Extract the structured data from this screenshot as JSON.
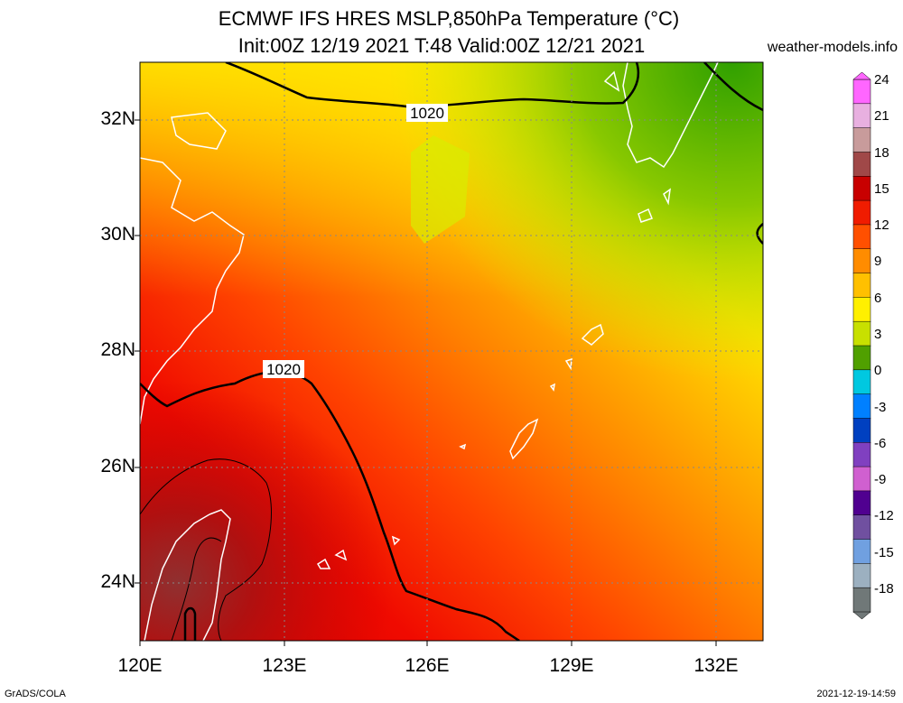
{
  "title_line1": "ECMWF IFS HRES MSLP,850hPa Temperature (°C)",
  "title_line2": "Init:00Z 12/19 2021 T:48 Valid:00Z 12/21 2021",
  "site": "weather-models.info",
  "lat_labels": [
    "32N",
    "30N",
    "28N",
    "26N",
    "24N"
  ],
  "lon_labels": [
    "120E",
    "123E",
    "126E",
    "129E",
    "132E"
  ],
  "isobar_labels": [
    "1020",
    "1020"
  ],
  "colorbar": {
    "labels": [
      "24",
      "21",
      "18",
      "15",
      "12",
      "9",
      "6",
      "3",
      "0",
      "-3",
      "-6",
      "-9",
      "-12",
      "-15",
      "-18"
    ],
    "colors": [
      "#ff66ff",
      "#e8b0e0",
      "#c89b9b",
      "#a04848",
      "#c80000",
      "#f01c00",
      "#ff5000",
      "#ff8c00",
      "#ffc000",
      "#fff000",
      "#c8e000",
      "#50a000",
      "#00c8e0",
      "#0080ff",
      "#0040c0",
      "#8040c0",
      "#d060d0",
      "#500090",
      "#7050a0",
      "#70a0e0",
      "#9cb0c0",
      "#707878"
    ]
  },
  "footer_left": "GrADS/COLA",
  "footer_right": "2021-12-19-14:59"
}
